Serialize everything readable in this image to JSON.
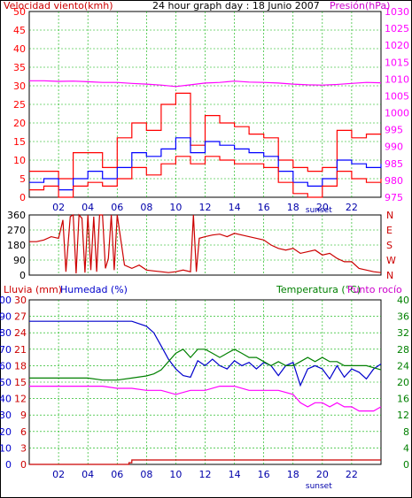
{
  "colors": {
    "wind": "#ff0000",
    "gust": "#ff0000",
    "avg_wind": "#0000ff",
    "pressure": "#ff00ff",
    "direction": "#cc0000",
    "rain": "#cc0000",
    "humidity": "#0000cc",
    "temperature": "#008000",
    "dewpoint": "#ff00ff",
    "grid": "#00b000",
    "axis_black": "#000000",
    "time_labels": "#0000aa"
  },
  "chart_data": [
    {
      "type": "line",
      "panel": "wind-pressure",
      "title": "24 hour graph day : 18 Junio 2007",
      "left_label": "Velocidad viento(kmh)",
      "right_label": "Presión(hPa)",
      "x_ticks": [
        "02",
        "04",
        "06",
        "08",
        "10",
        "12",
        "14",
        "16",
        "18",
        "20",
        "22"
      ],
      "x_tick_hours": [
        2,
        4,
        6,
        8,
        10,
        12,
        14,
        16,
        18,
        20,
        22
      ],
      "annotation": "sunset",
      "annotation_hour": 20,
      "y_left_ticks": [
        0,
        5,
        10,
        15,
        20,
        25,
        30,
        35,
        40,
        45,
        50
      ],
      "y_left_range": [
        0,
        50
      ],
      "y_right_ticks": [
        975,
        980,
        985,
        990,
        995,
        1000,
        1005,
        1010,
        1015,
        1020,
        1025,
        1030
      ],
      "y_right_range": [
        975,
        1030
      ],
      "series": [
        {
          "key": "gust",
          "axis": "left",
          "x": [
            0,
            1,
            2,
            3,
            4,
            5,
            6,
            7,
            8,
            9,
            10,
            11,
            12,
            13,
            14,
            15,
            16,
            17,
            18,
            19,
            20,
            21,
            22,
            23,
            24
          ],
          "y": [
            7,
            7,
            5,
            12,
            12,
            8,
            16,
            20,
            18,
            25,
            28,
            14,
            22,
            20,
            19,
            17,
            16,
            10,
            8,
            7,
            8,
            18,
            16,
            17,
            17
          ]
        },
        {
          "key": "avg_wind",
          "axis": "left",
          "x": [
            0,
            1,
            2,
            3,
            4,
            5,
            6,
            7,
            8,
            9,
            10,
            11,
            12,
            13,
            14,
            15,
            16,
            17,
            18,
            19,
            20,
            21,
            22,
            23,
            24
          ],
          "y": [
            4,
            5,
            2,
            5,
            7,
            5,
            8,
            12,
            11,
            13,
            16,
            12,
            15,
            14,
            13,
            12,
            11,
            7,
            4,
            3,
            5,
            10,
            9,
            8,
            9
          ]
        },
        {
          "key": "wind",
          "axis": "left",
          "x": [
            0,
            1,
            2,
            3,
            4,
            5,
            6,
            7,
            8,
            9,
            10,
            11,
            12,
            13,
            14,
            15,
            16,
            17,
            18,
            19,
            20,
            21,
            22,
            23,
            24
          ],
          "y": [
            2,
            3,
            0,
            3,
            4,
            3,
            5,
            8,
            6,
            9,
            11,
            9,
            11,
            10,
            9,
            9,
            8,
            4,
            1,
            0,
            3,
            7,
            5,
            4,
            5
          ]
        },
        {
          "key": "pressure",
          "axis": "right",
          "x": [
            0,
            1,
            2,
            3,
            4,
            5,
            6,
            7,
            8,
            9,
            10,
            11,
            12,
            13,
            14,
            15,
            16,
            17,
            18,
            19,
            20,
            21,
            22,
            23,
            24
          ],
          "y": [
            1009.5,
            1009.5,
            1009.3,
            1009.4,
            1009.2,
            1009,
            1009,
            1008.7,
            1008.5,
            1008.2,
            1007.8,
            1008.3,
            1008.8,
            1009,
            1009.4,
            1009.1,
            1009,
            1008.8,
            1008.5,
            1008.3,
            1008.2,
            1008.4,
            1008.7,
            1009,
            1008.9
          ]
        }
      ]
    },
    {
      "type": "line",
      "panel": "wind-direction",
      "y_left_ticks": [
        0,
        90,
        180,
        270,
        360
      ],
      "y_left_range": [
        0,
        360
      ],
      "y_right_ticks": [
        "N",
        "W",
        "S",
        "E",
        "N"
      ],
      "series": [
        {
          "key": "direction",
          "x": [
            0,
            0.5,
            1,
            1.5,
            2,
            2.3,
            2.5,
            2.8,
            3,
            3.2,
            3.4,
            3.6,
            3.8,
            4,
            4.2,
            4.4,
            4.6,
            4.8,
            5,
            5.2,
            5.4,
            5.6,
            5.8,
            6,
            6.5,
            7,
            7.5,
            8,
            8.5,
            9,
            9.5,
            10,
            10.5,
            11,
            11.2,
            11.4,
            11.6,
            12,
            12.5,
            13,
            13.5,
            14,
            14.5,
            15,
            15.5,
            16,
            16.5,
            17,
            17.5,
            18,
            18.5,
            19,
            19.5,
            20,
            20.5,
            21,
            21.5,
            22,
            22.5,
            23,
            23.5,
            24
          ],
          "y": [
            200,
            200,
            210,
            230,
            220,
            330,
            20,
            350,
            360,
            10,
            360,
            340,
            15,
            360,
            30,
            350,
            20,
            360,
            360,
            40,
            100,
            360,
            30,
            360,
            60,
            40,
            60,
            30,
            25,
            20,
            15,
            20,
            30,
            20,
            370,
            20,
            220,
            230,
            240,
            245,
            230,
            250,
            240,
            230,
            220,
            210,
            180,
            160,
            150,
            160,
            130,
            140,
            150,
            120,
            130,
            100,
            80,
            80,
            40,
            30,
            20,
            15
          ]
        }
      ]
    },
    {
      "type": "line",
      "panel": "rain-humidity-temperature",
      "left_label_rain": "Lluvia (mm)",
      "left_label_humidity": "Humedad (%)",
      "right_label_temp": "Temperatura (°C)",
      "right_label_dew": "Punto rocío",
      "x_ticks": [
        "02",
        "04",
        "06",
        "08",
        "10",
        "12",
        "14",
        "16",
        "18",
        "20",
        "22"
      ],
      "x_tick_hours": [
        2,
        4,
        6,
        8,
        10,
        12,
        14,
        16,
        18,
        20,
        22
      ],
      "annotation": "sunset",
      "annotation_hour": 20,
      "y_rain_ticks": [
        0,
        3,
        6,
        9,
        12,
        15,
        18,
        21,
        24,
        27,
        30
      ],
      "y_rain_range": [
        0,
        30
      ],
      "y_humidity_ticks": [
        0,
        10,
        20,
        30,
        40,
        50,
        60,
        70,
        80,
        90,
        100
      ],
      "y_humidity_range": [
        0,
        100
      ],
      "y_temp_ticks": [
        0,
        4,
        8,
        12,
        16,
        20,
        24,
        28,
        32,
        36,
        40
      ],
      "y_temp_range": [
        0,
        40
      ],
      "series": [
        {
          "key": "rain",
          "axis": "rain",
          "x": [
            0,
            1,
            2,
            3,
            4,
            5,
            6,
            6.8,
            7,
            8,
            9,
            10,
            11,
            12,
            13,
            14,
            15,
            16,
            17,
            18,
            19,
            20,
            21,
            22,
            23,
            24
          ],
          "y": [
            0,
            0,
            0,
            0,
            0,
            0,
            0,
            0.3,
            0.8,
            0.8,
            0.8,
            0.8,
            0.8,
            0.8,
            0.8,
            0.8,
            0.8,
            0.8,
            0.8,
            0.8,
            0.8,
            0.8,
            0.8,
            0.8,
            0.8,
            0.8
          ]
        },
        {
          "key": "humidity",
          "axis": "humidity",
          "x": [
            0,
            1,
            2,
            3,
            4,
            5,
            6,
            7,
            8,
            8.5,
            9,
            9.5,
            10,
            10.5,
            11,
            11.5,
            12,
            12.5,
            13,
            13.5,
            14,
            14.5,
            15,
            15.5,
            16,
            16.5,
            17,
            17.5,
            18,
            18.5,
            19,
            19.5,
            20,
            20.5,
            21,
            21.5,
            22,
            22.5,
            23,
            23.5,
            24
          ],
          "y": [
            87,
            87,
            87,
            87,
            87,
            87,
            87,
            87,
            84,
            80,
            72,
            64,
            58,
            54,
            53,
            63,
            60,
            64,
            60,
            58,
            63,
            60,
            62,
            58,
            62,
            60,
            54,
            60,
            62,
            48,
            58,
            60,
            58,
            52,
            60,
            53,
            58,
            56,
            52,
            58,
            61
          ]
        },
        {
          "key": "temperature",
          "axis": "temp",
          "x": [
            0,
            1,
            2,
            3,
            4,
            5,
            6,
            7,
            8,
            8.5,
            9,
            9.5,
            10,
            10.5,
            11,
            11.5,
            12,
            12.5,
            13,
            13.5,
            14,
            14.5,
            15,
            15.5,
            16,
            16.5,
            17,
            17.5,
            18,
            18.5,
            19,
            19.5,
            20,
            20.5,
            21,
            21.5,
            22,
            22.5,
            23,
            23.5,
            24
          ],
          "y": [
            21,
            21,
            21,
            21,
            21,
            20.5,
            20.5,
            21,
            21.5,
            22,
            23,
            25,
            27,
            28,
            26,
            28,
            28,
            27,
            26,
            27,
            28,
            27,
            26,
            26,
            25,
            24,
            25,
            24,
            24,
            25,
            26,
            25,
            26,
            25,
            25,
            24,
            24,
            24,
            24,
            23.5,
            23
          ]
        },
        {
          "key": "dewpoint",
          "axis": "temp",
          "x": [
            0,
            1,
            2,
            3,
            4,
            5,
            6,
            7,
            8,
            9,
            10,
            11,
            12,
            13,
            14,
            15,
            16,
            17,
            18,
            18.5,
            19,
            19.5,
            20,
            20.5,
            21,
            21.5,
            22,
            22.5,
            23,
            23.5,
            24
          ],
          "y": [
            19,
            19,
            19,
            19,
            19,
            19,
            18.5,
            18.5,
            18,
            18,
            17,
            18,
            18,
            19,
            19,
            18,
            18,
            18,
            17,
            15,
            14,
            15,
            15,
            14,
            15,
            14,
            14,
            13,
            13,
            13,
            14
          ]
        }
      ]
    }
  ]
}
